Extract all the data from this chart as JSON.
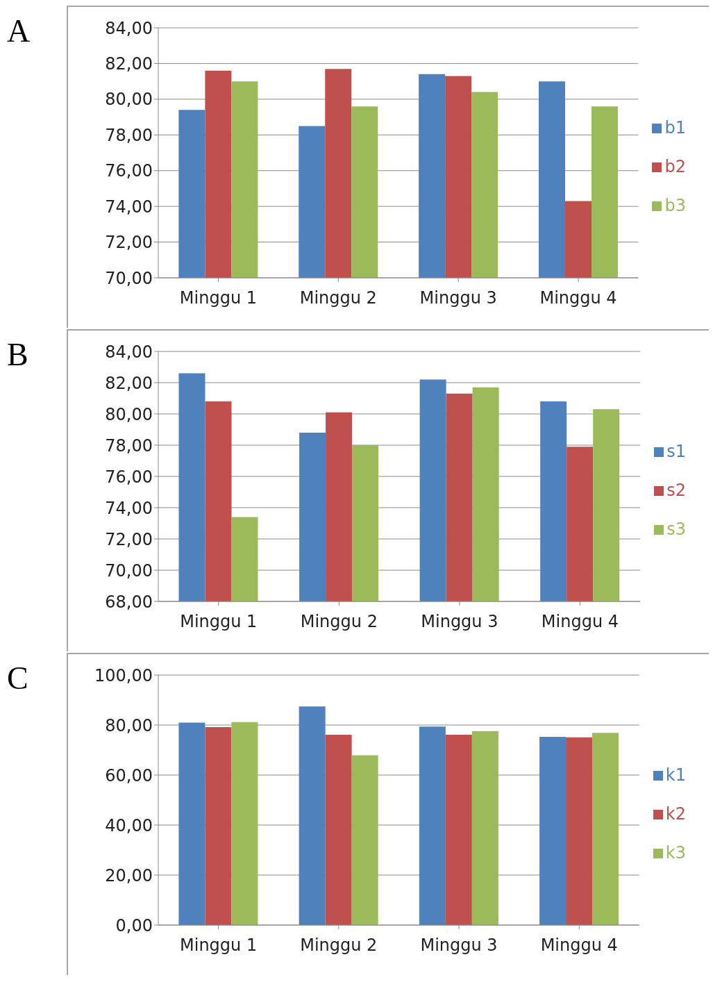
{
  "chart_data": [
    {
      "type": "bar",
      "title": "A",
      "categories": [
        "Minggu 1",
        "Minggu 2",
        "Minggu 3",
        "Minggu 4"
      ],
      "series": [
        {
          "name": "b1",
          "color": "#4f81bd",
          "values": [
            79.4,
            78.5,
            81.4,
            81.0
          ]
        },
        {
          "name": "b2",
          "color": "#c0504d",
          "values": [
            81.6,
            81.7,
            81.3,
            74.3
          ]
        },
        {
          "name": "b3",
          "color": "#9bbb59",
          "values": [
            81.0,
            79.6,
            80.4,
            79.6
          ]
        }
      ],
      "ylim": [
        70,
        84
      ],
      "yticks": [
        {
          "value": 70,
          "label": "70,00"
        },
        {
          "value": 72,
          "label": "72,00"
        },
        {
          "value": 74,
          "label": "74,00"
        },
        {
          "value": 76,
          "label": "76,00"
        },
        {
          "value": 78,
          "label": "78,00"
        },
        {
          "value": 80,
          "label": "80,00"
        },
        {
          "value": 82,
          "label": "82,00"
        },
        {
          "value": 84,
          "label": "84,00"
        }
      ],
      "grid": "y",
      "legend": "right"
    },
    {
      "type": "bar",
      "title": "B",
      "categories": [
        "Minggu 1",
        "Minggu 2",
        "Minggu 3",
        "Minggu 4"
      ],
      "series": [
        {
          "name": "s1",
          "color": "#4f81bd",
          "values": [
            82.6,
            78.8,
            82.2,
            80.8
          ]
        },
        {
          "name": "s2",
          "color": "#c0504d",
          "values": [
            80.8,
            80.1,
            81.3,
            77.9
          ]
        },
        {
          "name": "s3",
          "color": "#9bbb59",
          "values": [
            73.4,
            78.0,
            81.7,
            80.3
          ]
        }
      ],
      "ylim": [
        68,
        84
      ],
      "yticks": [
        {
          "value": 68,
          "label": "68,00"
        },
        {
          "value": 70,
          "label": "70,00"
        },
        {
          "value": 72,
          "label": "72,00"
        },
        {
          "value": 74,
          "label": "74,00"
        },
        {
          "value": 76,
          "label": "76,00"
        },
        {
          "value": 78,
          "label": "78,00"
        },
        {
          "value": 80,
          "label": "80,00"
        },
        {
          "value": 82,
          "label": "82,00"
        },
        {
          "value": 84,
          "label": "84,00"
        }
      ],
      "grid": "y",
      "legend": "right"
    },
    {
      "type": "bar",
      "title": "C",
      "categories": [
        "Minggu 1",
        "Minggu 2",
        "Minggu 3",
        "Minggu 4"
      ],
      "series": [
        {
          "name": "k1",
          "color": "#4f81bd",
          "values": [
            81.0,
            87.4,
            79.4,
            75.3
          ]
        },
        {
          "name": "k2",
          "color": "#c0504d",
          "values": [
            79.2,
            76.1,
            76.1,
            75.1
          ]
        },
        {
          "name": "k3",
          "color": "#9bbb59",
          "values": [
            81.2,
            67.9,
            77.6,
            76.9
          ]
        }
      ],
      "ylim": [
        0,
        100
      ],
      "yticks": [
        {
          "value": 0,
          "label": "0,00"
        },
        {
          "value": 20,
          "label": "20,00"
        },
        {
          "value": 40,
          "label": "40,00"
        },
        {
          "value": 60,
          "label": "60,00"
        },
        {
          "value": 80,
          "label": "80,00"
        },
        {
          "value": 100,
          "label": "100,00"
        }
      ],
      "grid": "y",
      "legend": "right"
    }
  ]
}
